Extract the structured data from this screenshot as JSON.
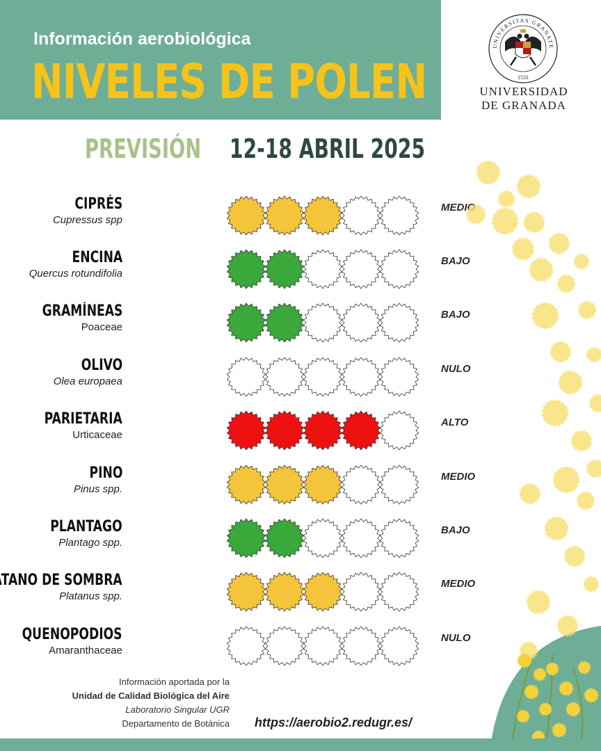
{
  "header": {
    "subtitle": "Información aerobiológica",
    "title": "NIVELES DE POLEN"
  },
  "logo": {
    "line1": "UNIVERSIDAD",
    "line2": "DE GRANADA",
    "seal_text": "UNIVERSITAS GRANATENSIS",
    "seal_year": "1531",
    "seal_colors": {
      "ring": "#222222",
      "gold": "#c9a23a",
      "red": "#b31b1b"
    }
  },
  "forecast": {
    "label": "PREVISIÓN",
    "dates": "12-18 ABRIL 2025"
  },
  "colors": {
    "header_bg": "#6fae96",
    "title": "#f6c319",
    "medio": "#f4c43a",
    "bajo": "#3aa83a",
    "alto": "#ee1111",
    "empty": "#ffffff"
  },
  "pollen": [
    {
      "common": "CIPRÉS",
      "scientific": "Cupressus spp",
      "level": "MEDIO",
      "filled": 3,
      "color": "medio"
    },
    {
      "common": "ENCINA",
      "scientific": "Quercus rotundifolia",
      "level": "BAJO",
      "filled": 2,
      "color": "bajo"
    },
    {
      "common": "GRAMÍNEAS",
      "scientific": "Poaceae",
      "level": "BAJO",
      "filled": 2,
      "color": "bajo"
    },
    {
      "common": "OLIVO",
      "scientific": "Olea europaea",
      "level": "NULO",
      "filled": 0,
      "color": "empty"
    },
    {
      "common": "PARIETARIA",
      "scientific": "Urticaceae",
      "level": "ALTO",
      "filled": 4,
      "color": "alto"
    },
    {
      "common": "PINO",
      "scientific": "Pinus spp.",
      "level": "MEDIO",
      "filled": 3,
      "color": "medio"
    },
    {
      "common": "PLANTAGO",
      "scientific": "Plantago spp.",
      "level": "BAJO",
      "filled": 2,
      "color": "bajo"
    },
    {
      "common": "PLÁTANO DE SOMBRA",
      "scientific": "Platanus spp.",
      "level": "MEDIO",
      "filled": 3,
      "color": "medio"
    },
    {
      "common": "QUENOPODIOS",
      "scientific": "Amaranthaceae",
      "level": "NULO",
      "filled": 0,
      "color": "empty"
    }
  ],
  "credits": {
    "line1": "Información aportada por la",
    "line2": "Unidad de Calidad Biológica del Aire",
    "line3": "Laboratorio Singular UGR",
    "line4": "Departamento de Botánica"
  },
  "url": "https://aerobio2.redugr.es/"
}
